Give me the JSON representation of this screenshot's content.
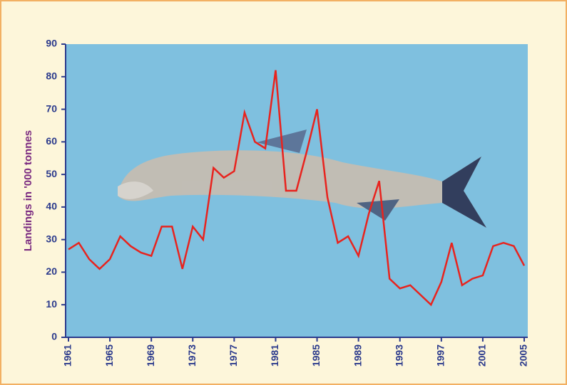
{
  "chart_data": {
    "type": "line",
    "ylabel": "Landings in '000 tonnes",
    "x": [
      1961,
      1962,
      1963,
      1964,
      1965,
      1966,
      1967,
      1968,
      1969,
      1970,
      1971,
      1972,
      1973,
      1974,
      1975,
      1976,
      1977,
      1978,
      1979,
      1980,
      1981,
      1982,
      1983,
      1984,
      1985,
      1986,
      1987,
      1988,
      1989,
      1990,
      1991,
      1992,
      1993,
      1994,
      1995,
      1996,
      1997,
      1998,
      1999,
      2000,
      2001,
      2002,
      2003,
      2004,
      2005
    ],
    "series": [
      {
        "color": "#e8231e",
        "values": [
          27,
          29,
          24,
          21,
          24,
          31,
          28,
          26,
          25,
          34,
          34,
          21,
          34,
          30,
          52,
          49,
          51,
          69,
          60,
          58,
          82,
          45,
          45,
          57,
          70,
          43,
          29,
          31,
          25,
          38,
          48,
          18,
          15,
          16,
          13,
          10,
          17,
          29,
          16,
          18,
          19,
          28,
          29,
          28,
          22
        ]
      }
    ],
    "xlim": [
      1961,
      2005
    ],
    "xticks": [
      1961,
      1965,
      1969,
      1973,
      1977,
      1981,
      1985,
      1989,
      1993,
      1997,
      2001,
      2005
    ],
    "ylim": [
      0,
      90
    ],
    "yticks": [
      0,
      10,
      20,
      30,
      40,
      50,
      60,
      70,
      80,
      90
    ]
  }
}
